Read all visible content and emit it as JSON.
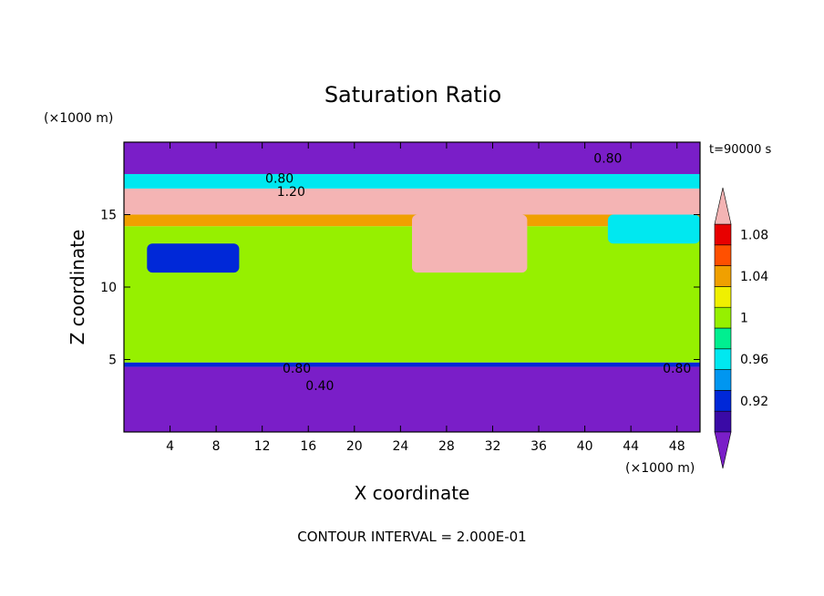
{
  "chart_data": {
    "type": "heatmap",
    "title": "Saturation Ratio",
    "xlabel": "X coordinate",
    "ylabel": "Z coordinate",
    "x_unit": "(×1000 m)",
    "y_unit": "(×1000 m)",
    "time_label": "t=90000 s",
    "footer": "CONTOUR INTERVAL = 2.000E-01",
    "xlim": [
      0,
      50
    ],
    "ylim": [
      0,
      20
    ],
    "x_ticks": [
      4,
      8,
      12,
      16,
      20,
      24,
      28,
      32,
      36,
      40,
      44,
      48
    ],
    "y_ticks": [
      5,
      10,
      15
    ],
    "colorbar": {
      "levels": [
        0.9,
        0.92,
        0.94,
        0.96,
        0.98,
        1.0,
        1.02,
        1.04,
        1.06,
        1.08,
        1.1
      ],
      "tick_labels": [
        {
          "value": 0.92,
          "label": "0.92"
        },
        {
          "value": 0.96,
          "label": "0.96"
        },
        {
          "value": 1.0,
          "label": "1"
        },
        {
          "value": 1.04,
          "label": "1.04"
        },
        {
          "value": 1.08,
          "label": "1.08"
        }
      ],
      "colors": [
        "#7a1ec8",
        "#3a0aa6",
        "#0028d8",
        "#0096f0",
        "#00e8f0",
        "#00ef90",
        "#96f000",
        "#f0f000",
        "#f0a000",
        "#ff5000",
        "#e80000",
        "#f4b4b4"
      ]
    },
    "bands": [
      {
        "z0": 0,
        "z1": 4.5,
        "value": 0.85
      },
      {
        "z0": 4.5,
        "z1": 4.8,
        "value": 0.93
      },
      {
        "z0": 4.8,
        "z1": 14.2,
        "value": 1.0
      },
      {
        "z0": 14.2,
        "z1": 15.0,
        "value": 1.05
      },
      {
        "z0": 15.0,
        "z1": 16.8,
        "value": 1.15
      },
      {
        "z0": 16.8,
        "z1": 17.8,
        "value": 0.96
      },
      {
        "z0": 17.8,
        "z1": 20,
        "value": 0.85
      }
    ],
    "patches": [
      {
        "x0": 0,
        "x1": 24,
        "z0": 5,
        "z1": 14,
        "value": 1.01
      },
      {
        "x0": 24,
        "x1": 32,
        "z0": 9,
        "z1": 14,
        "value": 1.01
      },
      {
        "x0": 40,
        "x1": 50,
        "z0": 5,
        "z1": 12,
        "value": 1.01
      },
      {
        "x0": 2,
        "x1": 10,
        "z0": 11,
        "z1": 13,
        "value": 0.92
      },
      {
        "x0": 25,
        "x1": 35,
        "z0": 11,
        "z1": 15,
        "value": 1.15
      },
      {
        "x0": 42,
        "x1": 50,
        "z0": 13,
        "z1": 15,
        "value": 0.96
      }
    ],
    "contour_labels": [
      {
        "x": 13.5,
        "z": 17.2,
        "label": "0.80"
      },
      {
        "x": 14.5,
        "z": 16.3,
        "label": "1.20"
      },
      {
        "x": 42,
        "z": 18.6,
        "label": "0.80"
      },
      {
        "x": 15,
        "z": 4.1,
        "label": "0.80"
      },
      {
        "x": 17,
        "z": 2.9,
        "label": "0.40"
      },
      {
        "x": 48,
        "z": 4.1,
        "label": "0.80"
      }
    ]
  }
}
